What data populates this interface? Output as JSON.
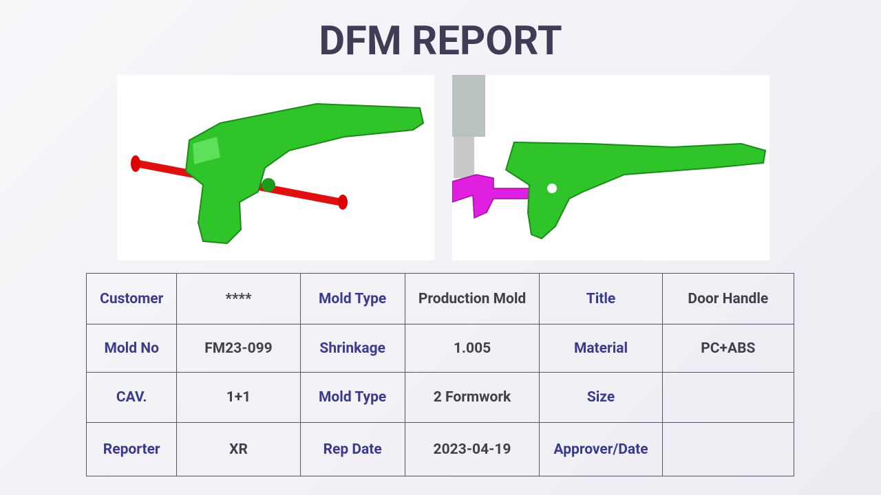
{
  "header": {
    "title": "DFM REPORT"
  },
  "table": {
    "rows": [
      [
        {
          "label": "Customer",
          "value": "****"
        },
        {
          "label": "Mold Type",
          "value": "Production Mold"
        },
        {
          "label": "Title",
          "value": "Door Handle"
        }
      ],
      [
        {
          "label": "Mold No",
          "value": "FM23-099"
        },
        {
          "label": "Shrinkage",
          "value": "1.005"
        },
        {
          "label": "Material",
          "value": "PC+ABS"
        }
      ],
      [
        {
          "label": "CAV.",
          "value": "1+1"
        },
        {
          "label": "Mold Type",
          "value": "2 Formwork"
        },
        {
          "label": "Size"
        }
      ],
      [
        {
          "label": "Reporter",
          "value": "XR"
        },
        {
          "label": "Rep Date",
          "value": "2023-04-19"
        },
        {
          "label": "Approver/Date"
        }
      ]
    ]
  }
}
